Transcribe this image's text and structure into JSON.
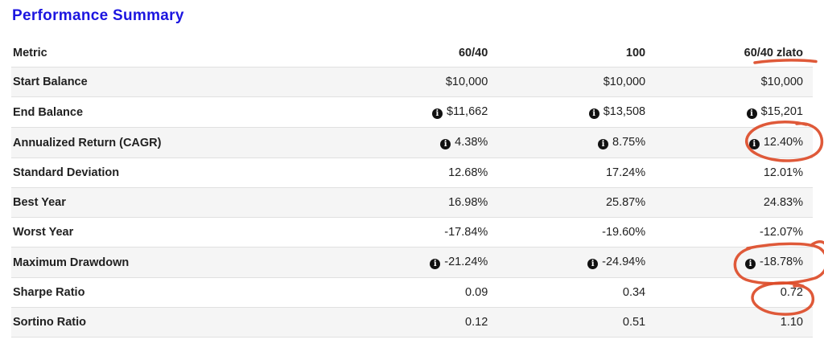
{
  "page": {
    "title": "Performance Summary"
  },
  "colors": {
    "title": "#1c15e0",
    "annotation": "#dc4b28",
    "row_stripe": "#f5f5f5",
    "border": "#e0e0e0",
    "text": "#212121"
  },
  "table": {
    "columns": [
      {
        "label": "Metric"
      },
      {
        "label": "60/40"
      },
      {
        "label": "100"
      },
      {
        "label": "60/40 zlato",
        "annotation": "red-underline-under-zlato"
      }
    ],
    "rows": [
      {
        "metric": "Start Balance",
        "values": [
          {
            "icon": false,
            "text": "$10,000"
          },
          {
            "icon": false,
            "text": "$10,000"
          },
          {
            "icon": false,
            "text": "$10,000"
          }
        ]
      },
      {
        "metric": "End Balance",
        "values": [
          {
            "icon": true,
            "text": "$11,662"
          },
          {
            "icon": true,
            "text": "$13,508"
          },
          {
            "icon": true,
            "text": "$15,201"
          }
        ]
      },
      {
        "metric": "Annualized Return (CAGR)",
        "values": [
          {
            "icon": true,
            "text": "4.38%"
          },
          {
            "icon": true,
            "text": "8.75%"
          },
          {
            "icon": true,
            "text": "12.40%",
            "annotation": "red-circle"
          }
        ]
      },
      {
        "metric": "Standard Deviation",
        "values": [
          {
            "icon": false,
            "text": "12.68%"
          },
          {
            "icon": false,
            "text": "17.24%"
          },
          {
            "icon": false,
            "text": "12.01%"
          }
        ]
      },
      {
        "metric": "Best Year",
        "values": [
          {
            "icon": false,
            "text": "16.98%"
          },
          {
            "icon": false,
            "text": "25.87%"
          },
          {
            "icon": false,
            "text": "24.83%"
          }
        ]
      },
      {
        "metric": "Worst Year",
        "values": [
          {
            "icon": false,
            "text": "-17.84%"
          },
          {
            "icon": false,
            "text": "-19.60%"
          },
          {
            "icon": false,
            "text": "-12.07%"
          }
        ]
      },
      {
        "metric": "Maximum Drawdown",
        "values": [
          {
            "icon": true,
            "text": "-21.24%"
          },
          {
            "icon": true,
            "text": "-24.94%"
          },
          {
            "icon": true,
            "text": "-18.78%",
            "annotation": "red-circle"
          }
        ]
      },
      {
        "metric": "Sharpe Ratio",
        "values": [
          {
            "icon": false,
            "text": "0.09"
          },
          {
            "icon": false,
            "text": "0.34"
          },
          {
            "icon": false,
            "text": "0.72",
            "annotation": "red-circle"
          }
        ]
      },
      {
        "metric": "Sortino Ratio",
        "values": [
          {
            "icon": false,
            "text": "0.12"
          },
          {
            "icon": false,
            "text": "0.51"
          },
          {
            "icon": false,
            "text": "1.10"
          }
        ]
      }
    ]
  },
  "annotations": [
    {
      "type": "underline",
      "target": "zlato (column header)"
    },
    {
      "type": "circle",
      "target": "12.40% (Annualized Return CAGR, 60/40 zlato)"
    },
    {
      "type": "circle",
      "target": "-18.78% (Maximum Drawdown, 60/40 zlato)"
    },
    {
      "type": "circle",
      "target": "0.72 (Sharpe Ratio, 60/40 zlato)"
    }
  ]
}
